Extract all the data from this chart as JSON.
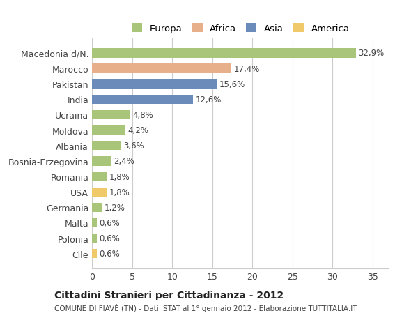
{
  "countries": [
    "Macedonia d/N.",
    "Marocco",
    "Pakistan",
    "India",
    "Ucraina",
    "Moldova",
    "Albania",
    "Bosnia-Erzegovina",
    "Romania",
    "USA",
    "Germania",
    "Malta",
    "Polonia",
    "Cile"
  ],
  "values": [
    32.9,
    17.4,
    15.6,
    12.6,
    4.8,
    4.2,
    3.6,
    2.4,
    1.8,
    1.8,
    1.2,
    0.6,
    0.6,
    0.6
  ],
  "colors": [
    "#a8c57a",
    "#e8b08a",
    "#6b8cba",
    "#6b8cba",
    "#a8c57a",
    "#a8c57a",
    "#a8c57a",
    "#a8c57a",
    "#a8c57a",
    "#f0c96a",
    "#a8c57a",
    "#a8c57a",
    "#a8c57a",
    "#f0c96a"
  ],
  "legend_labels": [
    "Europa",
    "Africa",
    "Asia",
    "America"
  ],
  "legend_colors": [
    "#a8c57a",
    "#e8b08a",
    "#6b8cba",
    "#f0c96a"
  ],
  "title": "Cittadini Stranieri per Cittadinanza - 2012",
  "subtitle": "COMUNE DI FIAVÈ (TN) - Dati ISTAT al 1° gennaio 2012 - Elaborazione TUTTITALIA.IT",
  "xlim": [
    0,
    37
  ],
  "xticks": [
    0,
    5,
    10,
    15,
    20,
    25,
    30,
    35
  ],
  "bg_color": "#ffffff",
  "bar_height": 0.6,
  "grid_color": "#cccccc",
  "value_labels": [
    "32,9%",
    "17,4%",
    "15,6%",
    "12,6%",
    "4,8%",
    "4,2%",
    "3,6%",
    "2,4%",
    "1,8%",
    "1,8%",
    "1,2%",
    "0,6%",
    "0,6%",
    "0,6%"
  ]
}
